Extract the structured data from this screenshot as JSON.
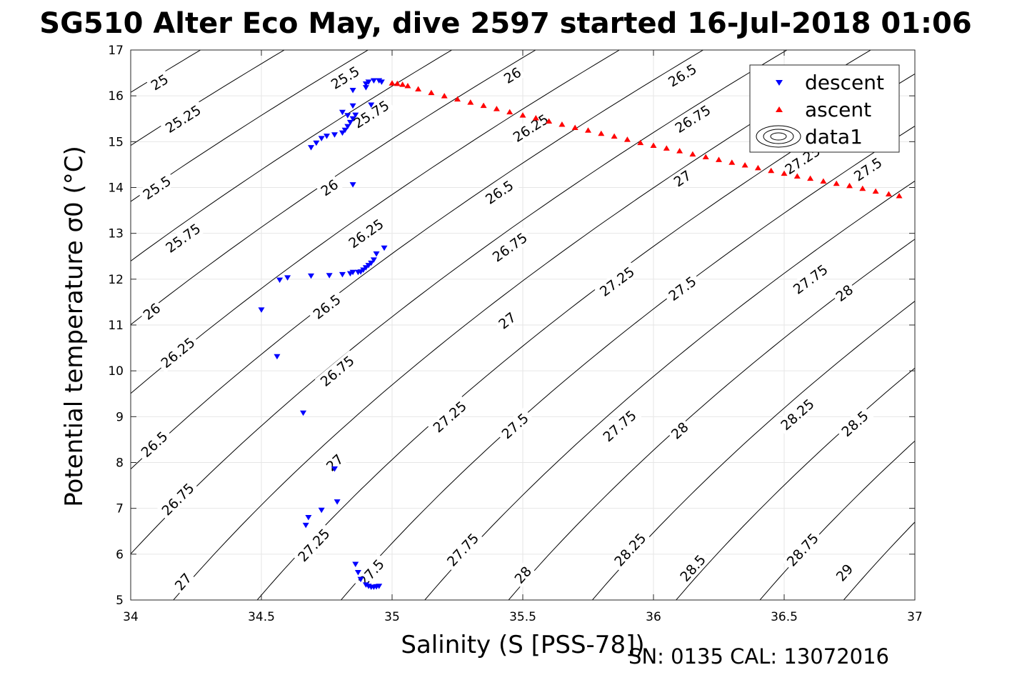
{
  "figure": {
    "title": "SG510 Alter Eco May, dive 2597 started 16-Jul-2018 01:06",
    "footer": "SN: 0135  CAL: 13072016"
  },
  "chart_data": {
    "type": "scatter",
    "title": "SG510 Alter Eco May, dive 2597 started 16-Jul-2018 01:06",
    "xlabel": "Salinity (S [PSS-78])",
    "ylabel": "Potential temperature σ0 (°C)",
    "xlim": [
      34,
      37
    ],
    "ylim": [
      5,
      17
    ],
    "xticks": [
      34,
      34.5,
      35,
      35.5,
      36,
      36.5,
      37
    ],
    "xtick_labels": [
      "34",
      "34.5",
      "35",
      "35.5",
      "36",
      "36.5",
      "37"
    ],
    "yticks": [
      5,
      6,
      7,
      8,
      9,
      10,
      11,
      12,
      13,
      14,
      15,
      16,
      17
    ],
    "ytick_labels": [
      "5",
      "6",
      "7",
      "8",
      "9",
      "10",
      "11",
      "12",
      "13",
      "14",
      "15",
      "16",
      "17"
    ],
    "grid": true,
    "legend_position": "top-right",
    "contour_levels": [
      25,
      25.25,
      25.5,
      25.75,
      26,
      26.25,
      26.5,
      26.75,
      27,
      27.25,
      27.5,
      27.75,
      28,
      28.25,
      28.5,
      28.75,
      29
    ],
    "contour_label_positions": [
      {
        "text": "25",
        "s": 34.11,
        "t": 16.3
      },
      {
        "text": "25.25",
        "s": 34.2,
        "t": 15.5
      },
      {
        "text": "25.5",
        "s": 34.1,
        "t": 14.0
      },
      {
        "text": "25.75",
        "s": 34.2,
        "t": 12.9
      },
      {
        "text": "26",
        "s": 34.08,
        "t": 11.3
      },
      {
        "text": "26.25",
        "s": 34.18,
        "t": 10.4
      },
      {
        "text": "26.5",
        "s": 34.09,
        "t": 8.4
      },
      {
        "text": "26.75",
        "s": 34.18,
        "t": 7.2
      },
      {
        "text": "27",
        "s": 34.2,
        "t": 5.4
      },
      {
        "text": "25.5",
        "s": 34.82,
        "t": 16.4
      },
      {
        "text": "25.75",
        "s": 34.92,
        "t": 15.6
      },
      {
        "text": "26",
        "s": 34.76,
        "t": 14.0
      },
      {
        "text": "26.25",
        "s": 34.9,
        "t": 13.0
      },
      {
        "text": "26.5",
        "s": 34.75,
        "t": 11.4
      },
      {
        "text": "26.75",
        "s": 34.79,
        "t": 10.0
      },
      {
        "text": "27",
        "s": 34.78,
        "t": 8.0
      },
      {
        "text": "27.25",
        "s": 34.7,
        "t": 6.2
      },
      {
        "text": "27.5",
        "s": 34.92,
        "t": 5.6
      },
      {
        "text": "26",
        "s": 35.46,
        "t": 16.45
      },
      {
        "text": "26.25",
        "s": 35.53,
        "t": 15.3
      },
      {
        "text": "26.5",
        "s": 35.41,
        "t": 13.9
      },
      {
        "text": "26.75",
        "s": 35.45,
        "t": 12.7
      },
      {
        "text": "27",
        "s": 35.44,
        "t": 11.1
      },
      {
        "text": "27.25",
        "s": 35.22,
        "t": 9.0
      },
      {
        "text": "27.5",
        "s": 35.47,
        "t": 8.8
      },
      {
        "text": "27.75",
        "s": 35.27,
        "t": 6.1
      },
      {
        "text": "28",
        "s": 35.5,
        "t": 5.55
      },
      {
        "text": "26.5",
        "s": 36.11,
        "t": 16.45
      },
      {
        "text": "26.75",
        "s": 36.15,
        "t": 15.5
      },
      {
        "text": "27",
        "s": 36.11,
        "t": 14.2
      },
      {
        "text": "27.25",
        "s": 35.86,
        "t": 11.95
      },
      {
        "text": "27.5",
        "s": 36.11,
        "t": 11.8
      },
      {
        "text": "27.75",
        "s": 35.87,
        "t": 8.8
      },
      {
        "text": "28",
        "s": 36.1,
        "t": 8.7
      },
      {
        "text": "28.25",
        "s": 35.91,
        "t": 6.1
      },
      {
        "text": "28.5",
        "s": 36.15,
        "t": 5.7
      },
      {
        "text": "27.25",
        "s": 36.57,
        "t": 14.6
      },
      {
        "text": "27.5",
        "s": 36.82,
        "t": 14.4
      },
      {
        "text": "27.75",
        "s": 36.6,
        "t": 12.0
      },
      {
        "text": "28",
        "s": 36.73,
        "t": 11.7
      },
      {
        "text": "28.25",
        "s": 36.55,
        "t": 9.05
      },
      {
        "text": "28.5",
        "s": 36.77,
        "t": 8.85
      },
      {
        "text": "28.75",
        "s": 36.57,
        "t": 6.1
      },
      {
        "text": "29",
        "s": 36.73,
        "t": 5.6
      }
    ],
    "series": [
      {
        "name": "descent",
        "marker": "triangle-down",
        "color": "#0000ff",
        "x": [
          34.5,
          34.56,
          34.6,
          34.57,
          34.66,
          34.67,
          34.68,
          34.69,
          34.73,
          34.76,
          34.78,
          34.79,
          34.81,
          34.84,
          34.86,
          34.87,
          34.88,
          34.9,
          34.91,
          34.92,
          34.93,
          34.94,
          34.94,
          34.95,
          34.97,
          34.85,
          34.85,
          34.87,
          34.88,
          34.89,
          34.9,
          34.91,
          34.92,
          34.93,
          34.94,
          34.69,
          34.71,
          34.73,
          34.75,
          34.78,
          34.81,
          34.82,
          34.83,
          34.84,
          34.85,
          34.86,
          34.81,
          34.83,
          34.85,
          34.85,
          34.9,
          34.9,
          34.91,
          34.93,
          34.95,
          34.96,
          34.92
        ],
        "y": [
          11.33,
          10.31,
          12.03,
          11.98,
          9.08,
          6.63,
          6.8,
          12.07,
          6.96,
          12.08,
          7.86,
          7.14,
          12.1,
          12.12,
          5.78,
          5.6,
          5.45,
          5.33,
          5.3,
          5.28,
          5.28,
          5.29,
          5.29,
          5.3,
          12.68,
          12.15,
          14.06,
          12.15,
          12.16,
          12.2,
          12.25,
          12.3,
          12.35,
          12.42,
          12.55,
          14.87,
          14.97,
          15.07,
          15.12,
          15.15,
          15.19,
          15.25,
          15.33,
          15.42,
          15.5,
          15.58,
          15.64,
          15.57,
          15.78,
          16.12,
          16.26,
          16.18,
          16.3,
          16.33,
          16.33,
          16.3,
          15.8
        ]
      },
      {
        "name": "ascent",
        "marker": "triangle-up",
        "color": "#ff0000",
        "x": [
          35.0,
          35.02,
          35.04,
          35.06,
          35.1,
          35.15,
          35.2,
          35.25,
          35.3,
          35.35,
          35.4,
          35.45,
          35.5,
          35.55,
          35.6,
          35.65,
          35.7,
          35.75,
          35.8,
          35.85,
          35.9,
          35.95,
          36.0,
          36.05,
          36.1,
          36.15,
          36.2,
          36.25,
          36.3,
          36.35,
          36.4,
          36.45,
          36.5,
          36.55,
          36.6,
          36.65,
          36.7,
          36.75,
          36.8,
          36.85,
          36.9,
          36.94
        ],
        "y": [
          16.28,
          16.27,
          16.25,
          16.22,
          16.15,
          16.07,
          16.0,
          15.93,
          15.86,
          15.79,
          15.72,
          15.65,
          15.58,
          15.52,
          15.45,
          15.38,
          15.31,
          15.25,
          15.18,
          15.12,
          15.05,
          14.98,
          14.92,
          14.86,
          14.8,
          14.73,
          14.67,
          14.61,
          14.55,
          14.49,
          14.43,
          14.37,
          14.31,
          14.25,
          14.2,
          14.14,
          14.09,
          14.04,
          13.98,
          13.92,
          13.86,
          13.82
        ]
      },
      {
        "name": "data1",
        "marker": "contour",
        "color": "#000000"
      }
    ]
  }
}
